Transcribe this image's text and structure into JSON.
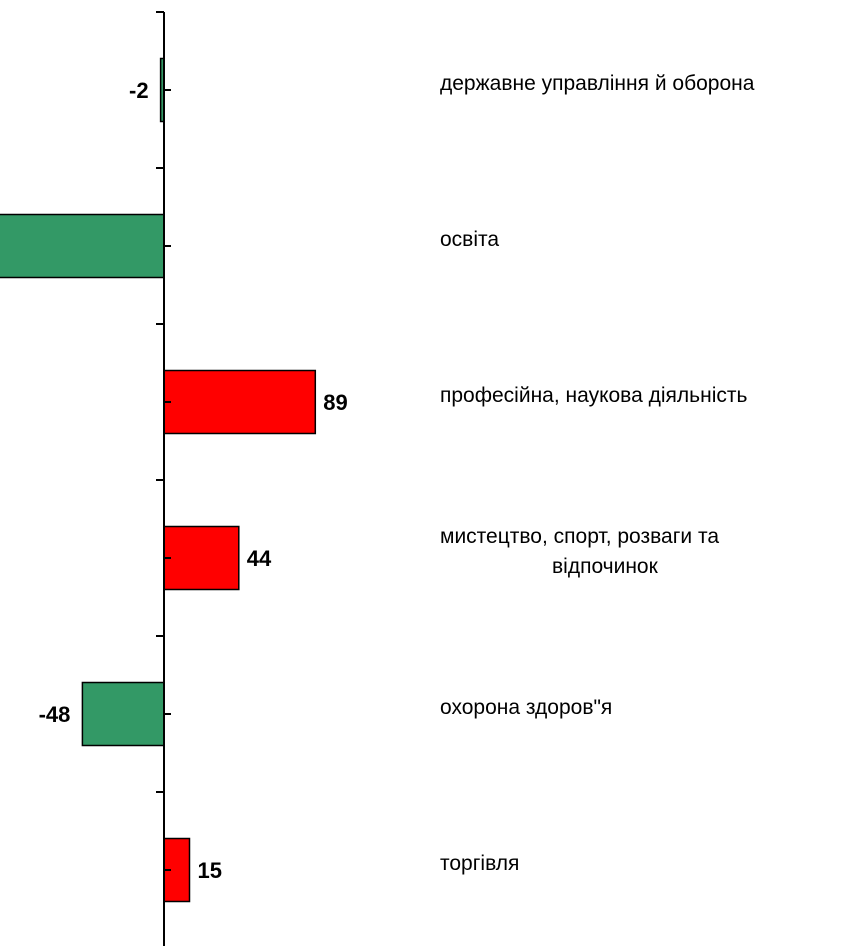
{
  "chart_data": {
    "type": "bar",
    "orientation": "horizontal",
    "categories": [
      "державне управління й оборона",
      "освіта",
      "професійна, наукова діяльність",
      "мистецтво, спорт, розваги та відпочинок",
      "охорона здоров\"я",
      "торгівля"
    ],
    "category_lines": [
      [
        "державне управління й оборона"
      ],
      [
        "освіта"
      ],
      [
        "професійна, наукова діяльність"
      ],
      [
        "мистецтво, спорт, розваги та",
        "відпочинок"
      ],
      [
        "охорона здоров\"я"
      ],
      [
        "торгівля"
      ]
    ],
    "values": [
      -2,
      -100,
      89,
      44,
      -48,
      15
    ],
    "data_labels": [
      "-2",
      "",
      "89",
      "44",
      "-48",
      "15"
    ],
    "xlim": [
      -100,
      410
    ],
    "positive_color": "#ff0000",
    "negative_color": "#339966",
    "grid": false,
    "legend": "none",
    "title": "",
    "xlabel": "",
    "ylabel": ""
  }
}
